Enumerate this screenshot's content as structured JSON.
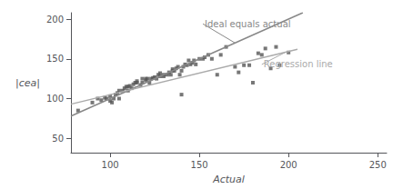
{
  "chart_data": {
    "type": "scatter",
    "xlabel": "Actual",
    "ylabel": "|cea|",
    "xlim": [
      78,
      255
    ],
    "ylim": [
      32,
      208
    ],
    "xticks": [
      100,
      150,
      200,
      250
    ],
    "yticks": [
      50,
      100,
      150,
      200
    ],
    "grid": false,
    "series": [
      {
        "type": "scatter",
        "color": "#555555",
        "marker": "square",
        "x": [
          82,
          90,
          93,
          95,
          97,
          98,
          100,
          100,
          101,
          102,
          103,
          104,
          105,
          105,
          107,
          108,
          109,
          110,
          110,
          111,
          112,
          113,
          114,
          115,
          115,
          117,
          118,
          118,
          120,
          120,
          121,
          122,
          123,
          124,
          125,
          126,
          127,
          128,
          128,
          130,
          130,
          132,
          133,
          134,
          135,
          135,
          136,
          137,
          138,
          139,
          140,
          140,
          141,
          142,
          143,
          144,
          145,
          146,
          147,
          148,
          150,
          152,
          153,
          155,
          157,
          160,
          162,
          165,
          170,
          172,
          175,
          178,
          180,
          183,
          185,
          187,
          190,
          193,
          195,
          200
        ],
        "values": [
          85,
          95,
          100,
          98,
          101,
          100,
          97,
          103,
          95,
          100,
          105,
          107,
          100,
          110,
          110,
          113,
          115,
          110,
          115,
          116,
          113,
          118,
          120,
          120,
          122,
          117,
          120,
          125,
          123,
          125,
          125,
          120,
          125,
          126,
          127,
          125,
          130,
          128,
          132,
          128,
          130,
          130,
          133,
          130,
          135,
          137,
          135,
          138,
          140,
          130,
          105,
          135,
          140,
          143,
          142,
          148,
          143,
          145,
          148,
          143,
          150,
          150,
          152,
          155,
          150,
          130,
          155,
          165,
          140,
          133,
          142,
          142,
          120,
          157,
          155,
          163,
          138,
          165,
          142,
          158
        ]
      },
      {
        "type": "line",
        "color": "#888888",
        "x": [
          78,
          208
        ],
        "values": [
          78,
          208
        ]
      },
      {
        "type": "line",
        "color": "#aaaaaa",
        "x": [
          78,
          205
        ],
        "values": [
          93,
          162
        ]
      }
    ],
    "annotations": [
      {
        "text": "Ideal equals actual",
        "x": 152,
        "y": 194,
        "arrow_x": 170,
        "arrow_y": 170,
        "color": "#888888"
      },
      {
        "text": "Regression line",
        "x": 185,
        "y": 143,
        "arrow_x": 198,
        "arrow_y": 158,
        "color": "#aaaaaa"
      }
    ]
  }
}
